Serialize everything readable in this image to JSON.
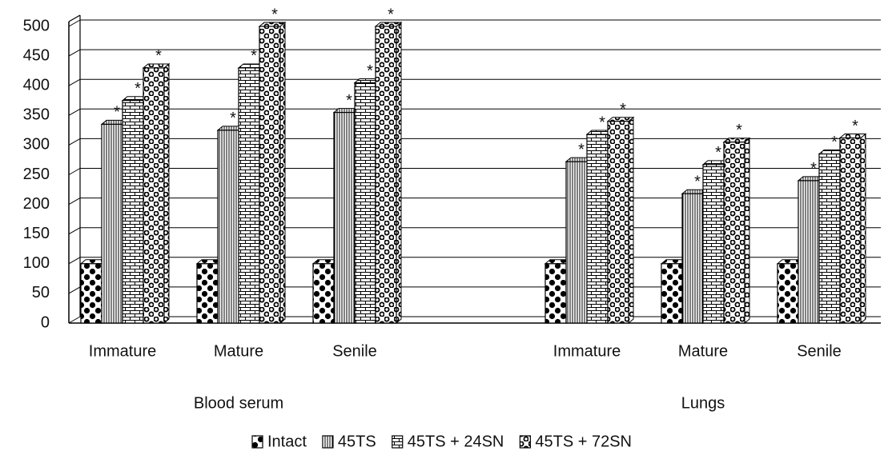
{
  "chart_data": {
    "type": "bar3d",
    "categories": [
      "Immature",
      "Mature",
      "Senile",
      null,
      "Immature",
      "Mature",
      "Senile"
    ],
    "category_groups": [
      "Blood serum",
      "Lungs"
    ],
    "series": [
      {
        "name": "Intact",
        "color": "#000000",
        "pattern": "dots",
        "values": [
          100,
          100,
          100,
          null,
          100,
          100,
          100
        ]
      },
      {
        "name": "45TS",
        "color": "#000000",
        "pattern": "vlines",
        "annotation": "*",
        "values": [
          335,
          325,
          355,
          null,
          272,
          218,
          240
        ]
      },
      {
        "name": "45TS + 24SN",
        "color": "#000000",
        "pattern": "brick",
        "annotation": "*",
        "values": [
          375,
          430,
          405,
          null,
          318,
          267,
          285
        ]
      },
      {
        "name": "45TS + 72SN",
        "color": "#000000",
        "pattern": "rings",
        "annotation": "*",
        "values": [
          430,
          500,
          500,
          null,
          340,
          305,
          312
        ]
      }
    ],
    "ylim": [
      0,
      500
    ],
    "yticks": [
      0,
      50,
      100,
      150,
      200,
      250,
      300,
      350,
      400,
      450,
      500
    ],
    "grid": true,
    "legend": "bottom"
  }
}
